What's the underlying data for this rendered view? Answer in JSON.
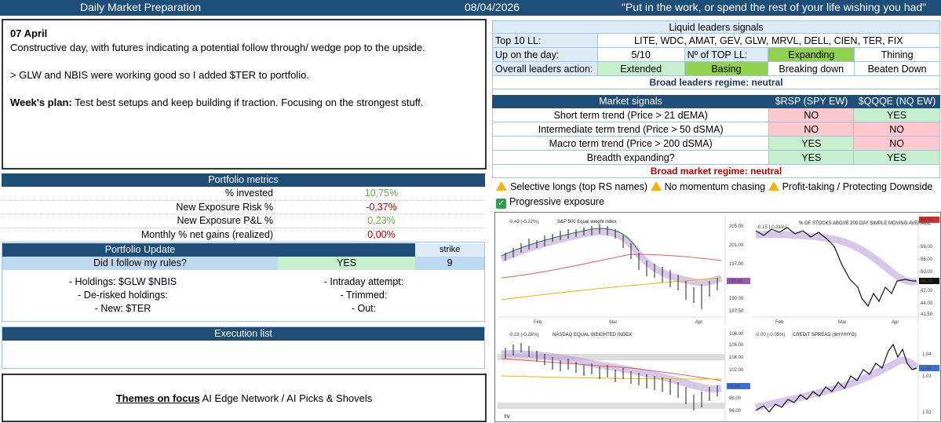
{
  "header": {
    "title": "Daily Market Preparation",
    "date": "08/04/2026",
    "quote": "\"Put in the work, or spend the rest of your life wishing you had\""
  },
  "notes": {
    "date": "07 April",
    "line1": "Constructive day, with futures indicating a potential follow through/ wedge pop to the upside.",
    "line2": "> GLW and NBIS were working good so I added $TER to portfolio.",
    "plan_label": "Week's plan:",
    "plan_text": "Test best setups and keep building if traction. Focusing on the strongest stuff."
  },
  "portfolio_metrics": {
    "title": "Portfolio metrics",
    "rows": [
      {
        "label": "% invested",
        "value": "10,75%",
        "color": "#70ad47"
      },
      {
        "label": "New Exposure Risk %",
        "value": "-0,37%",
        "color": "#c00000"
      },
      {
        "label": "New Exposure P&L %",
        "value": "0,23%",
        "color": "#70ad47"
      },
      {
        "label": "Monthly % net gains (realized)",
        "value": "0,00%",
        "color": "#c00000"
      }
    ]
  },
  "portfolio_update": {
    "title": "Portfolio Update",
    "strike_label": "strike",
    "question": "Did I follow my rules?",
    "answer": "YES",
    "strike": "9",
    "left": [
      "- Holdings: $GLW $NBIS",
      "- De-risked holdings:",
      "- New: $TER"
    ],
    "right": [
      "- Intraday attempt:",
      "- Trimmed:",
      "- Out:"
    ]
  },
  "execution": {
    "title": "Execution list"
  },
  "themes": {
    "label": "Themes on focus",
    "text": " AI Edge Network / AI Picks & Shovels"
  },
  "liquid_leaders": {
    "title": "Liquid leaders signals",
    "top10_label": "Top 10 LL:",
    "top10": "LITE, WDC, AMAT, GEV, GLW, MRVL, DELL, CIEN, TER, FIX",
    "up_label": "Up on the day:",
    "up_value": "5/10",
    "top_ll_label": "Nº of TOP LL:",
    "top_ll_a": "Expanding",
    "top_ll_b": "Thining",
    "action_label": "Overall leaders action:",
    "actions": [
      "Extended",
      "Basing",
      "Breaking down",
      "Beaten Down"
    ],
    "regime": "Broad leaders regime: neutral",
    "regime_color": "#1f3864"
  },
  "market_signals": {
    "title": "Market signals",
    "col1": "$RSP (SPY EW)",
    "col2": "$QQQE (NQ EW)",
    "rows": [
      {
        "label": "Short term trend (Price > 21 dEMA)",
        "a": "NO",
        "b": "YES"
      },
      {
        "label": "Intermediate term trend (Price > 50 dSMA)",
        "a": "NO",
        "b": "NO"
      },
      {
        "label": "Macro term trend (Price > 200 dSMA)",
        "a": "YES",
        "b": "NO"
      },
      {
        "label": "Breadth expanding?",
        "a": "YES",
        "b": "YES"
      }
    ],
    "regime": "Broad market regime: neutral",
    "regime_color": "#c00000"
  },
  "guidance": {
    "items": [
      "Selective longs (top RS names)",
      "No momentum chasing",
      "Profit-taking / Protecting Downside",
      "Progressive exposure"
    ],
    "icons": [
      "warning-icon",
      "warning-icon",
      "warning-icon",
      "check-icon"
    ]
  },
  "charts": {
    "c1": {
      "title": "S&P 500 Equal weight index",
      "change": "-0.43 (-0.22%)",
      "months": [
        "Feb",
        "Mar",
        "Apr"
      ],
      "yticks": [
        "205.00",
        "201.00",
        "197.00",
        "193.49",
        "190.00",
        "187.50"
      ],
      "last": "193.49"
    },
    "c2": {
      "title": "% OF STOCKS ABOVE 200 DAY SIMPLE MOVING AVERAGE",
      "change": "-0.15 (-0.31%)",
      "months": [
        "Feb",
        "Mar",
        "Apr"
      ],
      "yticks": [
        "65.00",
        "59.00",
        "55.00",
        "50.00",
        "48.29",
        "47.00",
        "44.00",
        "41.50"
      ],
      "last": "48.29"
    },
    "c3": {
      "title": "NASDAQ EQUAL WEIGHTED INDEX",
      "change": "-0.28 (-0.28%)",
      "months": [
        "Feb",
        "Mar",
        "Apr"
      ],
      "yticks": [
        "108.00",
        "106.00",
        "104.00",
        "102.00",
        "99.69",
        "98.00",
        "96.00"
      ],
      "last": "99.69"
    },
    "c4": {
      "title": "CREDIT SPREAD (SHY/HYG)",
      "change": "-0.00 (-0.05%)",
      "yticks": [
        "1.04",
        "1.03",
        "1.03",
        "1.02"
      ],
      "last": "1.03"
    }
  }
}
